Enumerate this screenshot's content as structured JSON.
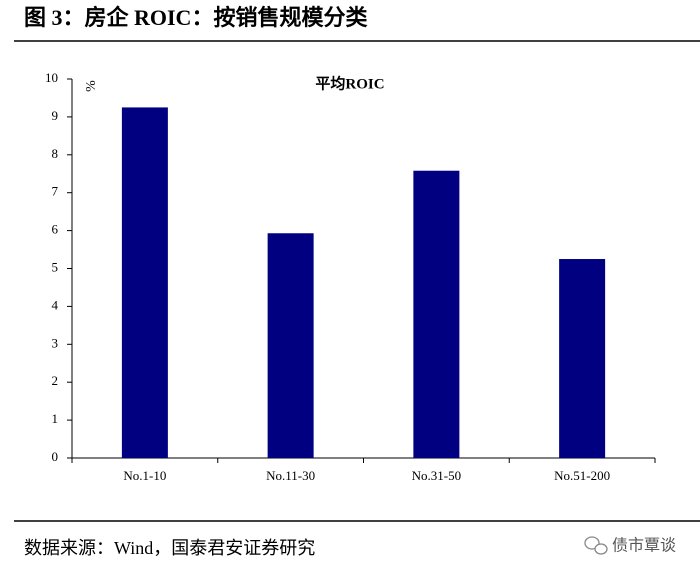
{
  "header": {
    "title": "图 3：房企 ROIC：按销售规模分类"
  },
  "chart_data": {
    "type": "bar",
    "title": "平均ROIC",
    "y_label": "%",
    "categories": [
      "No.1-10",
      "No.11-30",
      "No.31-50",
      "No.51-200"
    ],
    "values": [
      9.25,
      5.93,
      7.58,
      5.25
    ],
    "color": "#000080",
    "ylim": [
      0,
      10
    ],
    "yticks": [
      0,
      1,
      2,
      3,
      4,
      5,
      6,
      7,
      8,
      9,
      10
    ],
    "grid": false
  },
  "footer": {
    "source": "数据来源：Wind，国泰君安证券研究",
    "watermark": "债市覃谈"
  }
}
